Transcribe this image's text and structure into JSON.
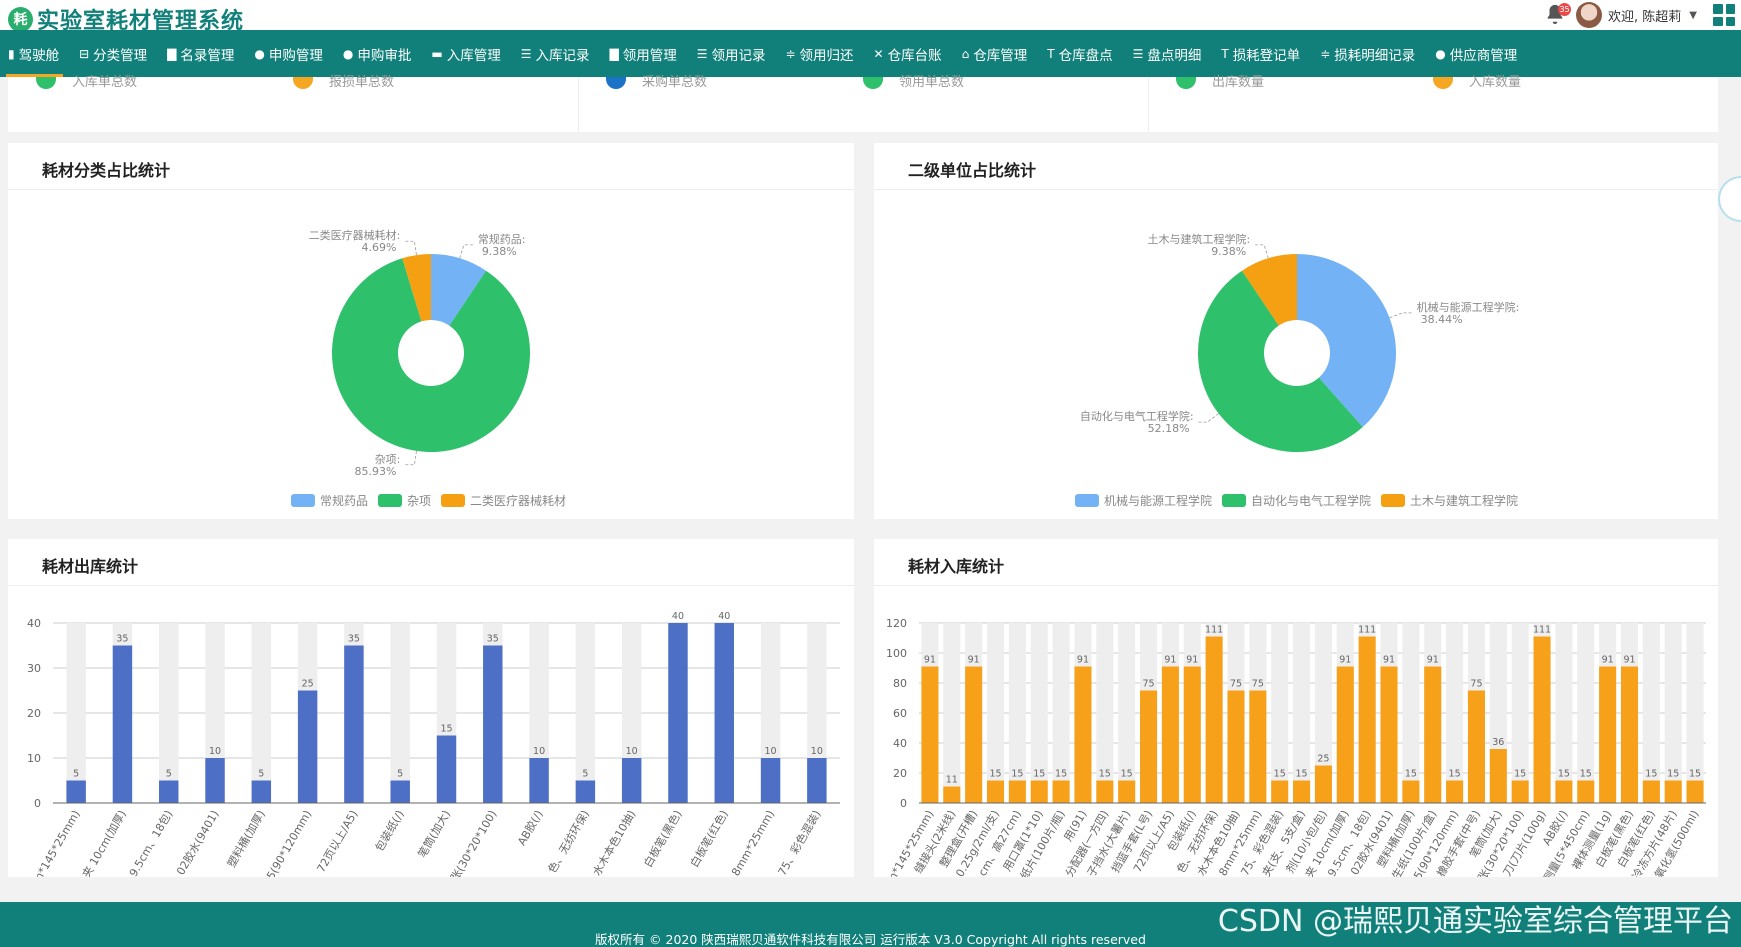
{
  "header": {
    "logo_char": "耗",
    "title": "实验室耗材管理系统",
    "notification_count": "35",
    "welcome": "欢迎, 陈超莉"
  },
  "nav": {
    "items": [
      {
        "label": "驾驶舱",
        "icon": "bar-chart-icon"
      },
      {
        "label": "分类管理",
        "icon": "tree-icon"
      },
      {
        "label": "名录管理",
        "icon": "book-icon"
      },
      {
        "label": "申购管理",
        "icon": "user-icon"
      },
      {
        "label": "申购审批",
        "icon": "user-check-icon"
      },
      {
        "label": "入库管理",
        "icon": "inbox-icon"
      },
      {
        "label": "入库记录",
        "icon": "list-icon"
      },
      {
        "label": "领用管理",
        "icon": "book-icon"
      },
      {
        "label": "领用记录",
        "icon": "list-icon"
      },
      {
        "label": "领用归还",
        "icon": "sliders-icon"
      },
      {
        "label": "仓库台账",
        "icon": "compress-icon"
      },
      {
        "label": "仓库管理",
        "icon": "home-icon"
      },
      {
        "label": "仓库盘点",
        "icon": "text-height-icon"
      },
      {
        "label": "盘点明细",
        "icon": "list-icon"
      },
      {
        "label": "损耗登记单",
        "icon": "text-height-icon"
      },
      {
        "label": "损耗明细记录",
        "icon": "sliders-icon"
      },
      {
        "label": "供应商管理",
        "icon": "users-icon"
      }
    ]
  },
  "stats": [
    {
      "label": "入库单总数",
      "color": "#2ec06b"
    },
    {
      "label": "报损单总数",
      "color": "#f5a623"
    },
    {
      "label": "采购单总数",
      "color": "#1a73c7"
    },
    {
      "label": "领用单总数",
      "color": "#2ec06b"
    },
    {
      "label": "出库数量",
      "color": "#2ec06b"
    },
    {
      "label": "入库数量",
      "color": "#f5a623"
    }
  ],
  "panels": {
    "category_title": "耗材分类占比统计",
    "unit_title": "二级单位占比统计",
    "outbound_title": "耗材出库统计",
    "inbound_title": "耗材入库统计"
  },
  "footer": {
    "copyright": "版权所有 © 2020 陕西瑞熙贝通软件科技有限公司 运行版本 V3.0 Copyright All rights reserved",
    "watermark": "CSDN @瑞熙贝通实验室综合管理平台"
  },
  "chart_data": [
    {
      "type": "pie",
      "title": "耗材分类占比统计",
      "legend_position": "bottom",
      "slices": [
        {
          "name": "常规药品",
          "value": 9.38,
          "label": "9.38%",
          "color": "#73b3f5"
        },
        {
          "name": "杂项",
          "value": 85.93,
          "label": "85.93%",
          "color": "#2ec06b"
        },
        {
          "name": "二类医疗器械耗材",
          "value": 4.69,
          "label": "4.69%",
          "color": "#f5a012"
        }
      ]
    },
    {
      "type": "pie",
      "title": "二级单位占比统计",
      "legend_position": "bottom",
      "slices": [
        {
          "name": "机械与能源工程学院",
          "value": 38.44,
          "label": "38.44%",
          "color": "#73b3f5"
        },
        {
          "name": "自动化与电气工程学院",
          "value": 52.18,
          "label": "52.18%",
          "color": "#2ec06b"
        },
        {
          "name": "土木与建筑工程学院",
          "value": 9.38,
          "label": "9.38%",
          "color": "#f5a012"
        }
      ]
    },
    {
      "type": "bar",
      "title": "耗材出库统计",
      "color": "#4e6fc6",
      "ylim": [
        0,
        40
      ],
      "yticks": [
        0,
        10,
        20,
        30,
        40
      ],
      "categories": [
        "m*145*25mm)",
        "夹 10cm(加厚)",
        "9.5cm、18包)",
        "02胶水(9401)",
        "塑料桶(加厚)",
        "5(90*120mm)",
        "72页以上/A5)",
        "包装纸(/)",
        "笔筒(加大)",
        "张(30*20*100)",
        "AB胶(/)",
        "色、无纺环保)",
        "水木本色10抽)",
        "白板笔(黑色)",
        "白板笔(红色)",
        "8mm*25mm)",
        "75、彩色混装)"
      ],
      "values": [
        5,
        35,
        5,
        10,
        5,
        25,
        35,
        5,
        15,
        35,
        10,
        5,
        10,
        40,
        40,
        10,
        10
      ]
    },
    {
      "type": "bar",
      "title": "耗材入库统计",
      "color": "#f7a11a",
      "ylim": [
        0,
        120
      ],
      "yticks": [
        0,
        20,
        40,
        60,
        80,
        100,
        120
      ],
      "categories": [
        "m*145*25mm)",
        "缝接头(2米线)",
        "整理盒(开槽)",
        "0.25g/2ml/支)",
        "cm、高27cm)",
        "用口罩(1*10)",
        "纸片(100片/瓶)",
        "用(91)",
        "分配器(一方四)",
        "子挡水(大薯片)",
        "挡篮手套(L号)",
        "72页以上/A5)",
        "包装纸(/)",
        "色、无纺环保)",
        "水木本色10抽)",
        "8mm*25mm)",
        "75、彩色混装)",
        "夹(支、5支/盒)",
        "剂(10小包/包)",
        "夹 10cm(加厚)",
        "9.5cm、18包)",
        "02胶水(9401)",
        "塑料桶(加厚)",
        "生纸(100片/盒)",
        "5(90*120mm)",
        "橡胶手套(中号)",
        "笔筒(加大)",
        "张(30*20*100)",
        "刀(刀片(100g)",
        "AB胶(/)",
        "测量(5*450cm)",
        "裸体测量(1g)",
        "白板笔(黑色)",
        "白板笔(红色)",
        "冷冻方片(48片)",
        "氧化氢(500ml)"
      ],
      "values": [
        91,
        11,
        91,
        15,
        15,
        15,
        15,
        91,
        15,
        15,
        75,
        91,
        91,
        111,
        75,
        75,
        15,
        15,
        25,
        91,
        111,
        91,
        15,
        91,
        15,
        75,
        36,
        15,
        111,
        15,
        15,
        91,
        91,
        15,
        15,
        15
      ]
    }
  ]
}
